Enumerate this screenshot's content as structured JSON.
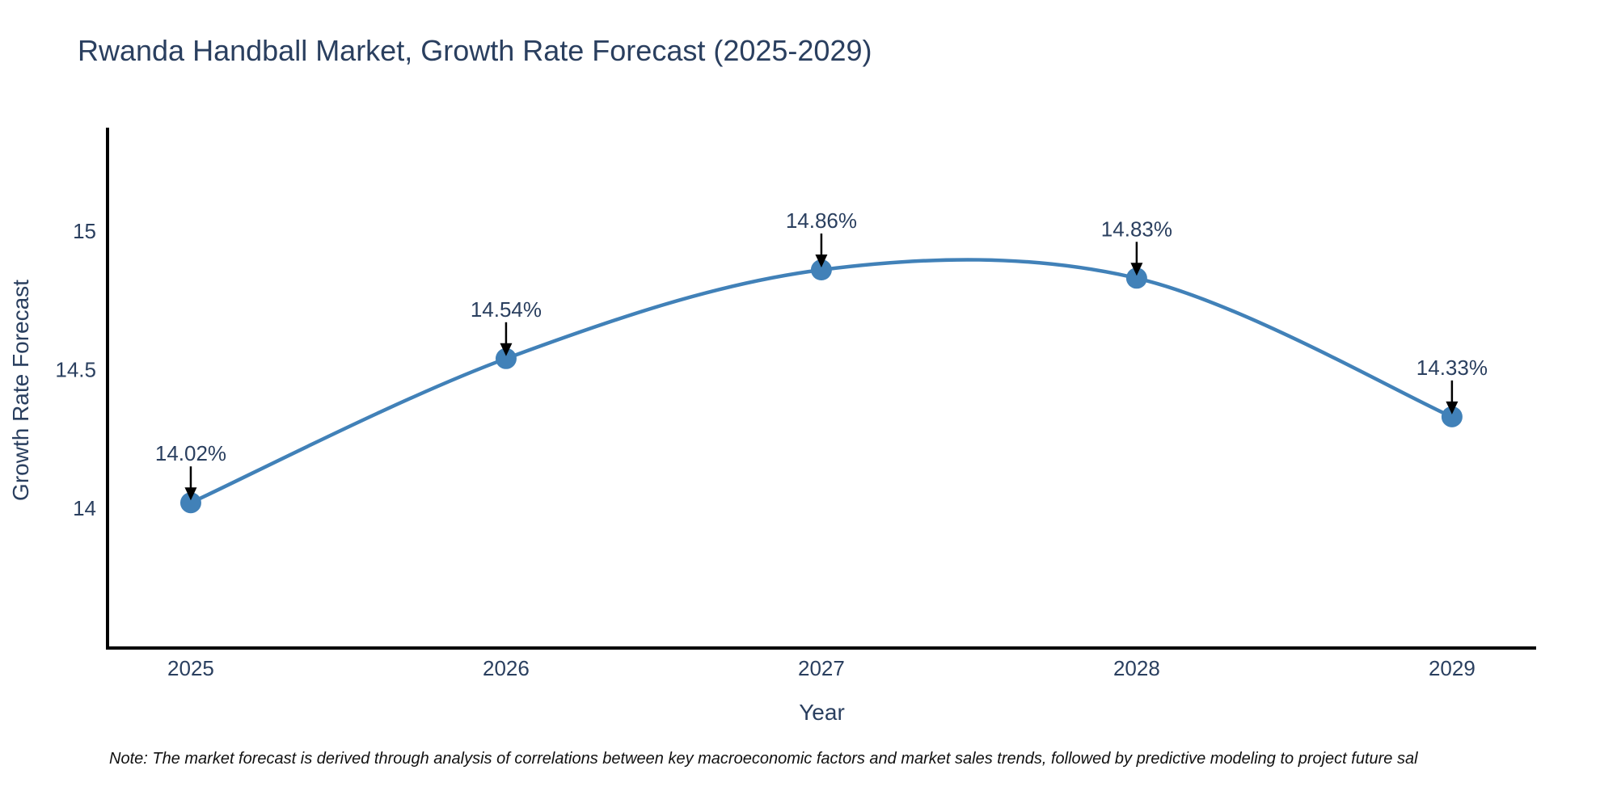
{
  "chart_data": {
    "type": "line",
    "title": "Rwanda Handball Market, Growth Rate Forecast (2025-2029)",
    "xlabel": "Year",
    "ylabel": "Growth Rate Forecast",
    "x": [
      2025,
      2026,
      2027,
      2028,
      2029
    ],
    "values": [
      14.02,
      14.54,
      14.86,
      14.83,
      14.33
    ],
    "series": [
      {
        "name": "Growth Rate Forecast",
        "values": [
          14.02,
          14.54,
          14.86,
          14.83,
          14.33
        ]
      }
    ],
    "point_labels": [
      "14.02%",
      "14.54%",
      "14.86%",
      "14.83%",
      "14.33%"
    ],
    "x_tick_labels": [
      "2025",
      "2026",
      "2027",
      "2028",
      "2029"
    ],
    "y_ticks": [
      14,
      14.5,
      15
    ],
    "y_tick_labels": [
      "14",
      "14.5",
      "15"
    ],
    "xlim": [
      2024.736,
      2029.267
    ],
    "ylim": [
      13.496,
      15.373
    ],
    "line_shape": "spline",
    "grid": false,
    "legend": "none",
    "colors": {
      "line": "#4181b8",
      "marker": "#4181b8",
      "axis_line": "#000000",
      "annotation_arrow": "#000000",
      "text": "#2a3f5f",
      "note_text": "#111111",
      "background": "#ffffff"
    },
    "note": "Note: The market forecast is derived through analysis of correlations between key macroeconomic factors and market sales trends, followed by predictive modeling to project future sal"
  }
}
